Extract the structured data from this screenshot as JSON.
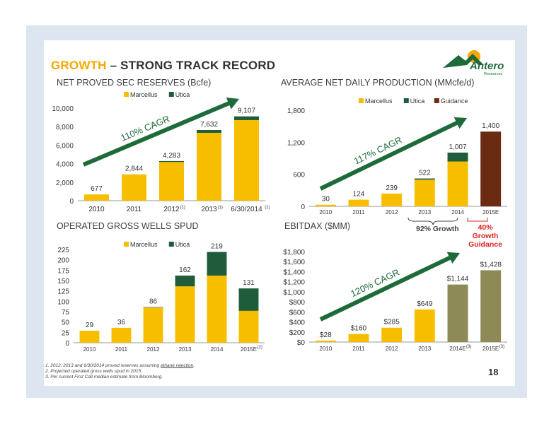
{
  "header": {
    "title_accent": "GROWTH",
    "title_rest": " – STRONG TRACK RECORD",
    "logo_text": "Antero",
    "logo_sub": "Resources"
  },
  "colors": {
    "marcellus": "#f7be00",
    "utica": "#1e5c3c",
    "guidance": "#6b2a12",
    "ebitdax_actual": "#f7be00",
    "ebitdax_estimate": "#8e8a58",
    "arrow": "#1e6b3a"
  },
  "footnotes": {
    "note1_pre": "1.  2012, 2013 and 6/30/2014 proved reserves assuming ",
    "note1_link": "ethane rejection",
    "note1_post": ".",
    "note2": "2.  Projected operated gross wells spud in 2015.",
    "note3": "3.  Per current First Call median estimate from Bloomberg."
  },
  "page_number": "18",
  "annotations": {
    "growth92": "92% Growth",
    "growth40_line1": "40% Growth",
    "growth40_line2": "Guidance"
  },
  "chart_data": [
    {
      "id": "reserves",
      "type": "bar",
      "title": "NET PROVED SEC RESERVES (Bcfe)",
      "categories": [
        "2010",
        "2011",
        "2012",
        "2013",
        "6/30/2014"
      ],
      "category_superscripts": [
        "",
        "",
        "(1)",
        "(1)",
        "(1)"
      ],
      "series": [
        {
          "name": "Marcellus",
          "values": [
            677,
            2844,
            4183,
            7332,
            8707
          ]
        },
        {
          "name": "Utica",
          "values": [
            0,
            0,
            100,
            300,
            400
          ]
        }
      ],
      "totals": [
        "677",
        "2,844",
        "4,283",
        "7,632",
        "9,107"
      ],
      "yticks": [
        "0",
        "2,000",
        "4,000",
        "6,000",
        "8,000",
        "10,000"
      ],
      "ylim": [
        0,
        10000
      ],
      "legend": "top",
      "arrow_label": "110% CAGR"
    },
    {
      "id": "production",
      "type": "bar",
      "title": "AVERAGE NET DAILY PRODUCTION (MMcfe/d)",
      "categories": [
        "2010",
        "2011",
        "2012",
        "2013",
        "2014",
        "2015E"
      ],
      "series": [
        {
          "name": "Marcellus",
          "values": [
            30,
            124,
            239,
            500,
            840,
            0
          ]
        },
        {
          "name": "Utica",
          "values": [
            0,
            0,
            0,
            22,
            167,
            0
          ]
        },
        {
          "name": "Guidance",
          "values": [
            0,
            0,
            0,
            0,
            0,
            1400
          ]
        }
      ],
      "totals": [
        "30",
        "124",
        "239",
        "522",
        "1,007",
        "1,400"
      ],
      "yticks": [
        "0",
        "600",
        "1,200",
        "1,800"
      ],
      "ylim": [
        0,
        1800
      ],
      "legend": "top",
      "arrow_label": "117% CAGR"
    },
    {
      "id": "wells",
      "type": "bar",
      "title": "OPERATED GROSS WELLS SPUD",
      "categories": [
        "2010",
        "2011",
        "2012",
        "2013",
        "2014",
        "2015E"
      ],
      "category_superscripts": [
        "",
        "",
        "",
        "",
        "",
        "(2)"
      ],
      "series": [
        {
          "name": "Marcellus",
          "values": [
            29,
            36,
            85,
            136,
            162,
            77
          ]
        },
        {
          "name": "Utica",
          "values": [
            0,
            0,
            1,
            26,
            57,
            54
          ]
        }
      ],
      "totals": [
        "29",
        "36",
        "86",
        "162",
        "219",
        "131"
      ],
      "yticks": [
        "0",
        "25",
        "50",
        "75",
        "100",
        "125",
        "150",
        "175",
        "200",
        "225"
      ],
      "ylim": [
        0,
        225
      ],
      "legend": "top"
    },
    {
      "id": "ebitdax",
      "type": "bar",
      "title": "EBITDAX ($MM)",
      "categories": [
        "2010",
        "2011",
        "2012",
        "2013",
        "2014E",
        "2015E"
      ],
      "category_superscripts": [
        "",
        "",
        "",
        "",
        "(3)",
        "(3)"
      ],
      "values": [
        28,
        160,
        285,
        649,
        1144,
        1428
      ],
      "labels": [
        "$28",
        "$160",
        "$285",
        "$649",
        "$1,144",
        "$1,428"
      ],
      "yticks": [
        "$0",
        "$200",
        "$400",
        "$600",
        "$800",
        "$1,000",
        "$1,200",
        "$1,400",
        "$1,600",
        "$1,800"
      ],
      "ylim": [
        0,
        1800
      ],
      "arrow_label": "120% CAGR"
    }
  ]
}
